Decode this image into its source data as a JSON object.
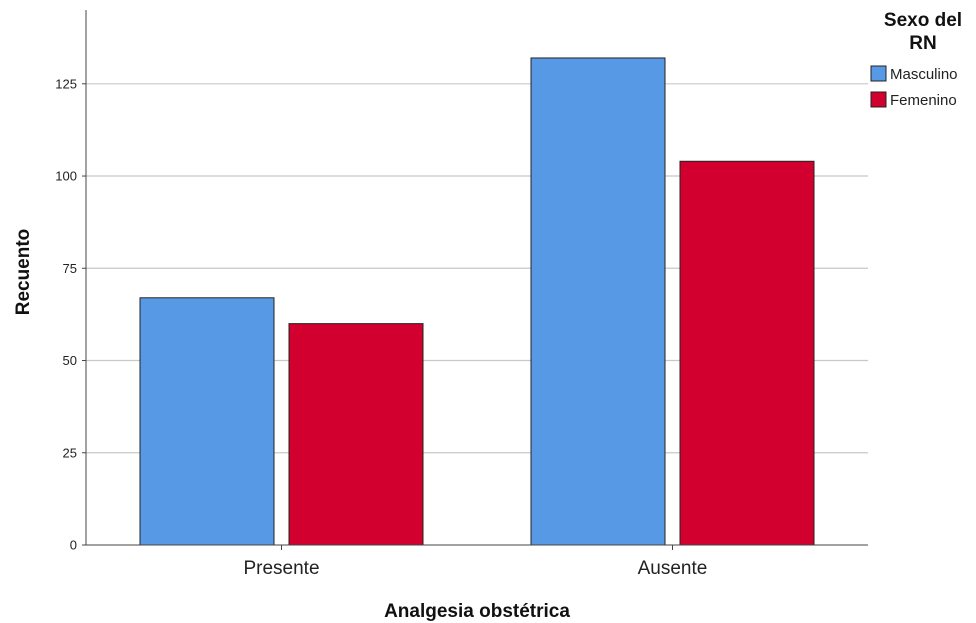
{
  "chart_data": {
    "type": "bar",
    "categories": [
      "Presente",
      "Ausente"
    ],
    "series": [
      {
        "name": "Masculino",
        "values": [
          67,
          132
        ],
        "color": "#5899e6"
      },
      {
        "name": "Femenino",
        "values": [
          60,
          104
        ],
        "color": "#d1002f"
      }
    ],
    "title": "",
    "xlabel": "Analgesia obstétrica",
    "ylabel": "Recuento",
    "ylim": [
      0,
      145
    ],
    "yticks": [
      0,
      25,
      50,
      75,
      100,
      125
    ],
    "grid": true,
    "legend": {
      "title_lines": [
        "Sexo del",
        "RN"
      ],
      "placement": "top-right"
    }
  }
}
